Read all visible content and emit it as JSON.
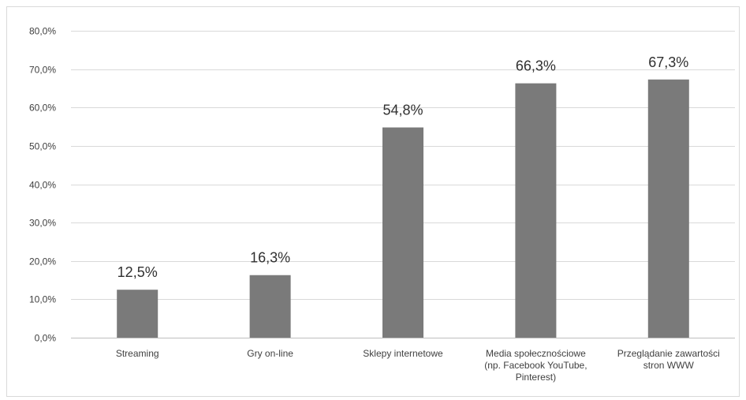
{
  "chart_data": {
    "type": "bar",
    "title": "",
    "xlabel": "",
    "ylabel": "",
    "categories": [
      [
        "Streaming"
      ],
      [
        "Gry on-line"
      ],
      [
        "Sklepy internetowe"
      ],
      [
        "Media społecznościowe",
        "(np. Facebook YouTube,",
        "Pinterest)"
      ],
      [
        "Przeglądanie zawartości",
        "stron WWW"
      ]
    ],
    "values": [
      12.5,
      16.3,
      54.8,
      66.3,
      67.3
    ],
    "data_labels": [
      "12,5%",
      "16,3%",
      "54,8%",
      "66,3%",
      "67,3%"
    ],
    "ylim": [
      0,
      80
    ],
    "yticks": [
      0,
      10,
      20,
      30,
      40,
      50,
      60,
      70,
      80
    ],
    "ytick_labels": [
      "0,0%",
      "10,0%",
      "20,0%",
      "30,0%",
      "40,0%",
      "50,0%",
      "60,0%",
      "70,0%",
      "80,0%"
    ],
    "grid": true,
    "legend": "none",
    "bar_color": "#7a7a7a"
  }
}
